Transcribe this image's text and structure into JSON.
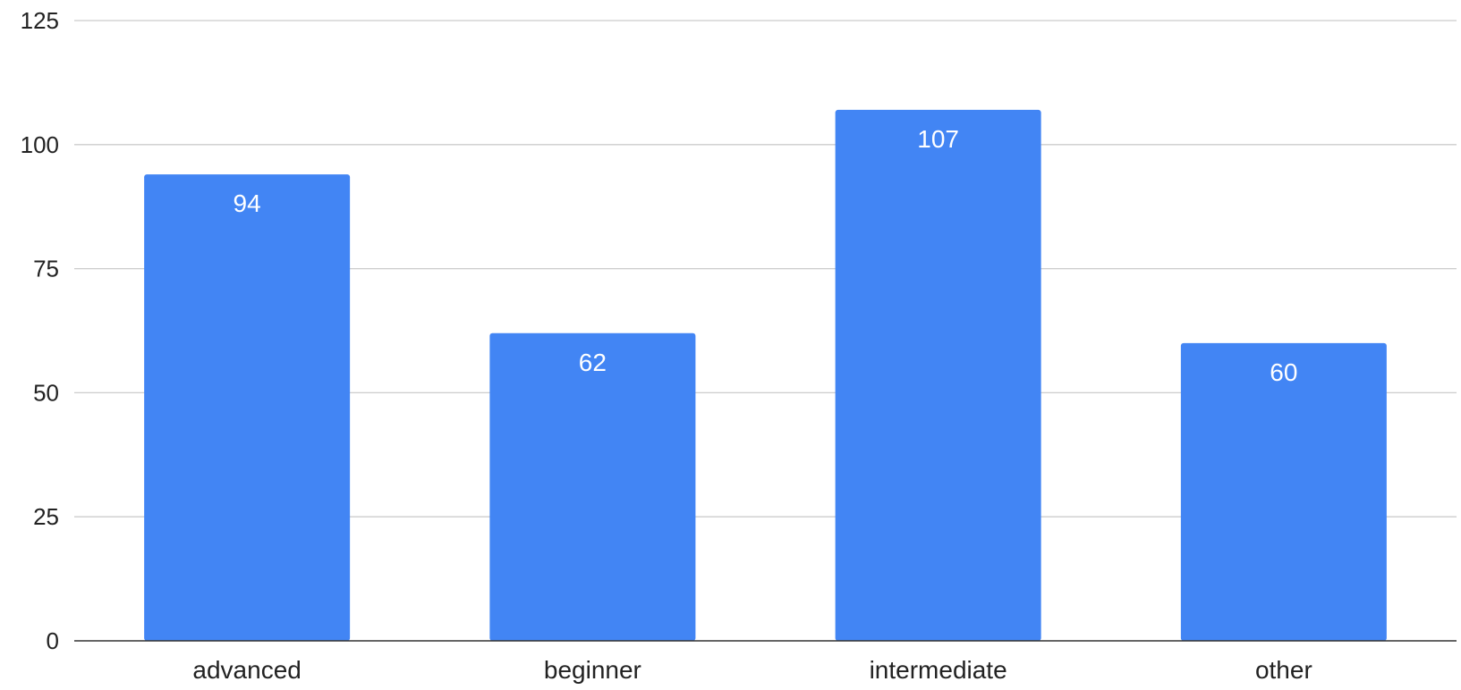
{
  "chart_data": {
    "type": "bar",
    "title": "",
    "xlabel": "",
    "ylabel": "",
    "categories": [
      "advanced",
      "beginner",
      "intermediate",
      "other"
    ],
    "values": [
      94,
      62,
      107,
      60
    ],
    "data_labels": [
      "94",
      "62",
      "107",
      "60"
    ],
    "ylim": [
      0,
      125
    ],
    "yticks": [
      0,
      25,
      50,
      75,
      100,
      125
    ],
    "ytick_labels": [
      "0",
      "25",
      "50",
      "75",
      "100",
      "125"
    ],
    "grid": true,
    "legend": "none",
    "bar_color": "#4285f4"
  }
}
